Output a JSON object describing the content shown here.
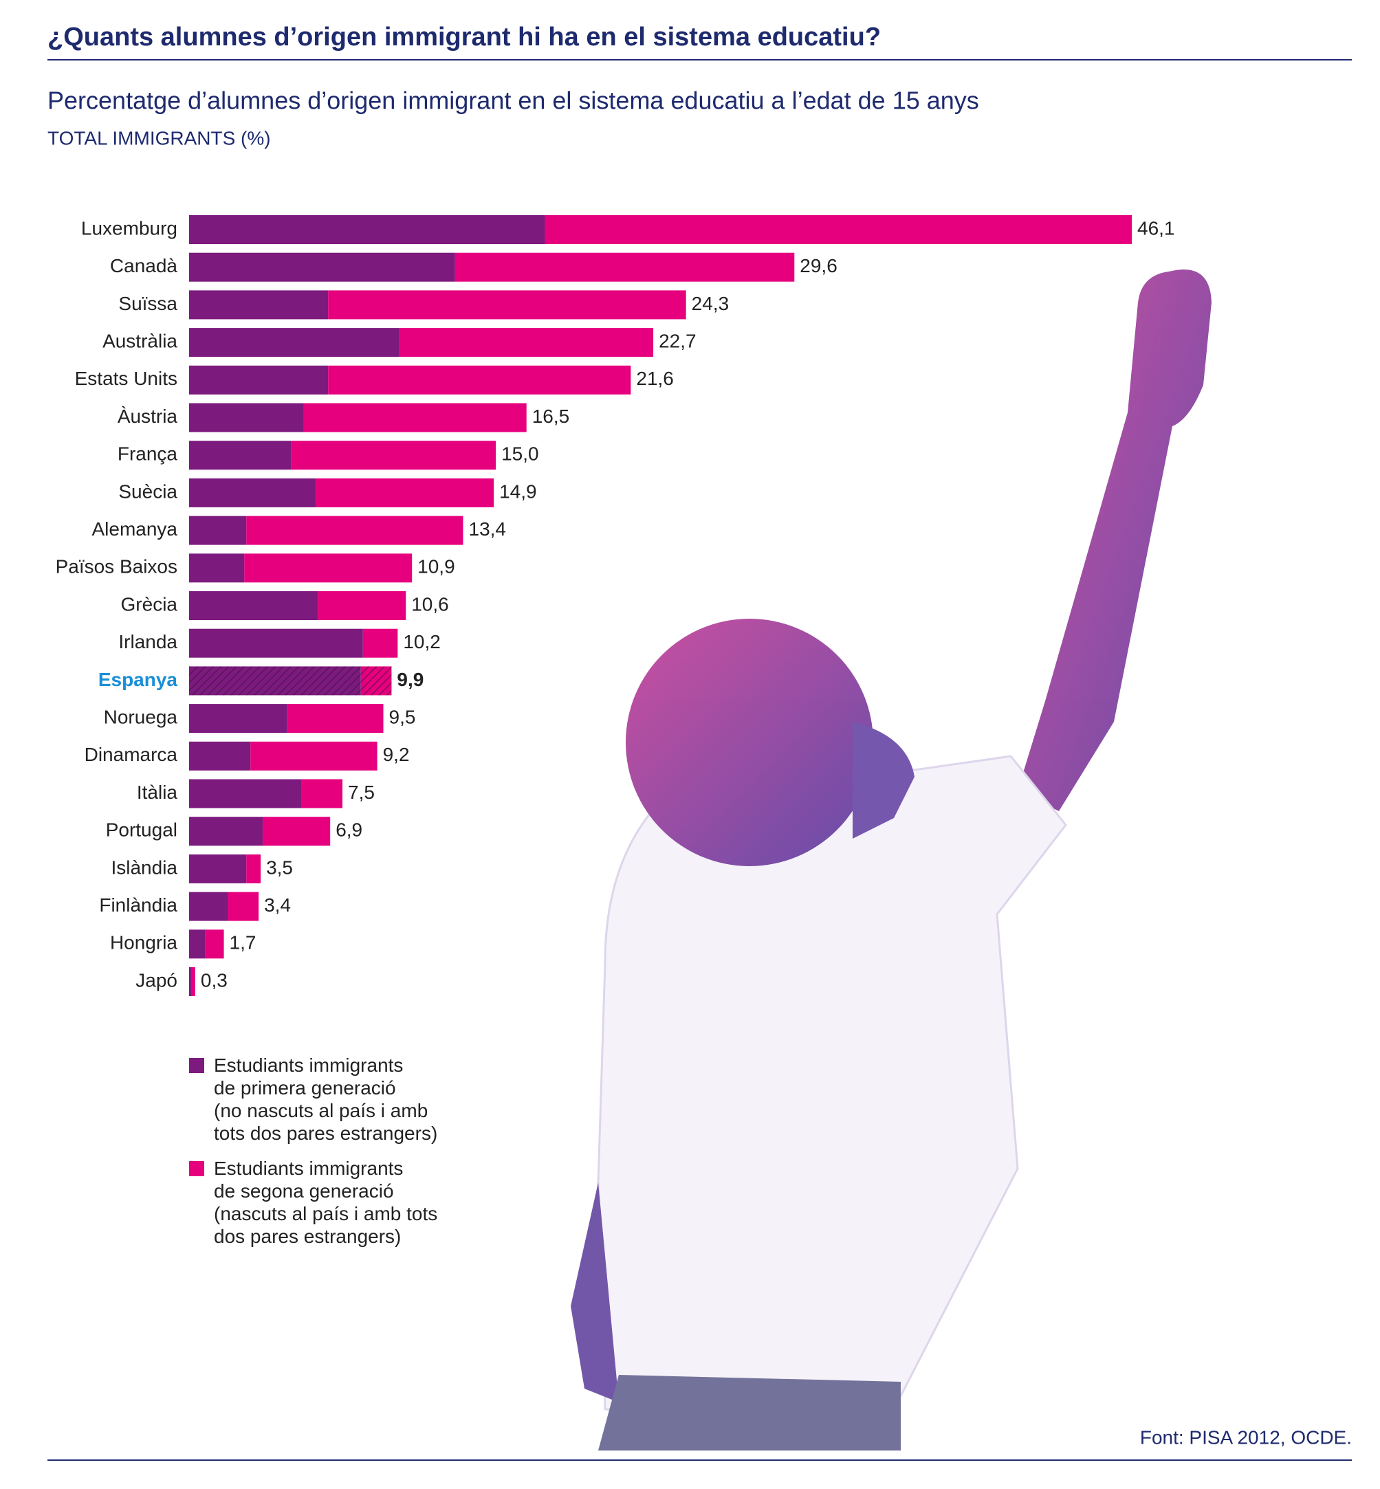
{
  "chart_data": {
    "type": "stacked-bar-horizontal",
    "title": "¿Quants alumnes d’origen immigrant hi ha en el sistema educatiu?",
    "subtitle": "Percentatge d’alumnes d’origen immigrant en el sistema educatiu a l’edat de 15 anys",
    "axis_label": "TOTAL IMMIGRANTS  (%)",
    "source": "Font: PISA 2012, OCDE.",
    "highlight": "Espanya",
    "categories": [
      "Luxemburg",
      "Canadà",
      "Suïssa",
      "Austràlia",
      "Estats Units",
      "Àustria",
      "França",
      "Suècia",
      "Alemanya",
      "Països Baixos",
      "Grècia",
      "Irlanda",
      "Espanya",
      "Noruega",
      "Dinamarca",
      "Itàlia",
      "Portugal",
      "Islàndia",
      "Finlàndia",
      "Hongria",
      "Japó"
    ],
    "series": [
      {
        "name": "Estudiants immigrants\nde primera generació\n(no nascuts al país i amb\ntots dos pares estrangers)",
        "color": "#7d1a7e",
        "values": [
          17.4,
          13.0,
          6.8,
          10.3,
          6.8,
          5.6,
          5.0,
          6.2,
          2.8,
          2.7,
          6.3,
          8.5,
          8.4,
          4.8,
          3.0,
          5.5,
          3.6,
          2.8,
          1.9,
          0.8,
          0.1
        ]
      },
      {
        "name": "Estudiants immigrants\nde segona generació\n(nascuts al país i amb tots\ndos pares estrangers)",
        "color": "#e6007e",
        "values": [
          28.7,
          16.6,
          17.5,
          12.4,
          14.8,
          10.9,
          10.0,
          8.7,
          10.6,
          8.2,
          4.3,
          1.7,
          1.5,
          4.7,
          6.2,
          2.0,
          3.3,
          0.7,
          1.5,
          0.9,
          0.2
        ]
      }
    ],
    "totals": [
      46.1,
      29.6,
      24.3,
      22.7,
      21.6,
      16.5,
      15.0,
      14.9,
      13.4,
      10.9,
      10.6,
      10.2,
      9.9,
      9.5,
      9.2,
      7.5,
      6.9,
      3.5,
      3.4,
      1.7,
      0.3
    ],
    "total_labels": [
      "46,1",
      "29,6",
      "24,3",
      "22,7",
      "21,6",
      "16,5",
      "15,0",
      "14,9",
      "13,4",
      "10,9",
      "10,6",
      "10,2",
      "9,9",
      "9,5",
      "9,2",
      "7,5",
      "6,9",
      "3,5",
      "3,4",
      "1,7",
      "0,3"
    ]
  }
}
